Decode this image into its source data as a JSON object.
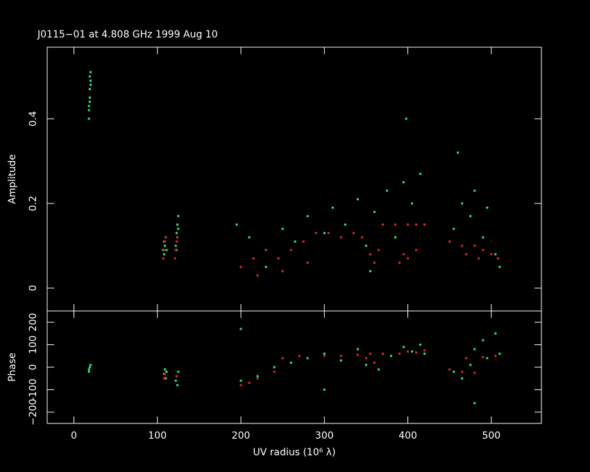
{
  "chart_data": [
    {
      "type": "scatter",
      "title": "J0115−01 at 4.808 GHz 1999 Aug 10",
      "ylabel": "Amplitude",
      "xlim": [
        -32,
        560
      ],
      "ylim": [
        -0.054,
        0.569
      ],
      "yticks": [
        0,
        0.2,
        0.4
      ],
      "series": [
        {
          "color": "#22ee77",
          "x": [
            18,
            18,
            19,
            19,
            20,
            20,
            19,
            18,
            20,
            19,
            107,
            108,
            109,
            110,
            111,
            108,
            122,
            123,
            124,
            125,
            123,
            124,
            125,
            195,
            210,
            230,
            250,
            265,
            280,
            300,
            310,
            325,
            340,
            350,
            360,
            375,
            385,
            395,
            405,
            415,
            420,
            455,
            465,
            475,
            480,
            490,
            495,
            505,
            510,
            398,
            460,
            355,
            230
          ],
          "values": [
            0.4,
            0.43,
            0.45,
            0.47,
            0.49,
            0.51,
            0.44,
            0.42,
            0.48,
            0.5,
            0.09,
            0.11,
            0.1,
            0.12,
            0.09,
            0.08,
            0.1,
            0.13,
            0.15,
            0.17,
            0.09,
            0.12,
            0.14,
            0.15,
            0.12,
            0.09,
            0.14,
            0.11,
            0.17,
            0.13,
            0.19,
            0.15,
            0.21,
            0.1,
            0.18,
            0.23,
            0.12,
            0.25,
            0.2,
            0.27,
            0.15,
            0.14,
            0.2,
            0.17,
            0.23,
            0.12,
            0.19,
            0.08,
            0.05,
            0.4,
            0.32,
            0.04,
            0.05
          ]
        },
        {
          "color": "#ee2222",
          "x": [
            107,
            108,
            109,
            110,
            121,
            122,
            123,
            124,
            200,
            215,
            230,
            245,
            260,
            275,
            290,
            305,
            320,
            335,
            345,
            355,
            360,
            365,
            370,
            385,
            400,
            395,
            390,
            410,
            420,
            410,
            400,
            450,
            465,
            480,
            490,
            500,
            508,
            470,
            485,
            220,
            250,
            280
          ],
          "values": [
            0.07,
            0.09,
            0.11,
            0.12,
            0.07,
            0.09,
            0.11,
            0.12,
            0.05,
            0.07,
            0.09,
            0.07,
            0.09,
            0.11,
            0.13,
            0.13,
            0.12,
            0.13,
            0.12,
            0.08,
            0.06,
            0.09,
            0.15,
            0.15,
            0.15,
            0.08,
            0.06,
            0.15,
            0.15,
            0.09,
            0.07,
            0.11,
            0.1,
            0.1,
            0.09,
            0.08,
            0.07,
            0.08,
            0.07,
            0.03,
            0.04,
            0.06
          ]
        }
      ]
    },
    {
      "type": "scatter",
      "ylabel": "Phase",
      "xlabel": "UV radius  (10⁶ λ)",
      "xlim": [
        -32,
        560
      ],
      "ylim": [
        -250,
        250
      ],
      "xticks": [
        0,
        100,
        200,
        300,
        400,
        500
      ],
      "yticks": [
        {
          "value": -200,
          "label": "−200"
        },
        {
          "value": -100,
          "label": "-100"
        },
        0,
        100,
        200
      ],
      "series": [
        {
          "color": "#22ee77",
          "x": [
            18,
            19,
            20,
            18,
            108,
            109,
            110,
            111,
            123,
            124,
            125,
            122,
            200,
            220,
            240,
            260,
            280,
            300,
            320,
            340,
            350,
            365,
            380,
            395,
            405,
            415,
            420,
            455,
            465,
            475,
            480,
            490,
            495,
            505,
            510,
            200,
            300,
            480
          ],
          "values": [
            -20,
            0,
            10,
            -10,
            -30,
            -10,
            -50,
            -20,
            -40,
            -80,
            -20,
            -60,
            -60,
            -40,
            0,
            20,
            40,
            60,
            30,
            80,
            10,
            -10,
            50,
            90,
            70,
            100,
            60,
            -20,
            -50,
            10,
            80,
            120,
            40,
            150,
            60,
            170,
            -100,
            -160
          ]
        },
        {
          "color": "#ee2222",
          "x": [
            108,
            109,
            123,
            200,
            210,
            220,
            240,
            250,
            270,
            300,
            320,
            340,
            355,
            360,
            350,
            370,
            390,
            400,
            410,
            420,
            450,
            465,
            480,
            470,
            490,
            505
          ],
          "values": [
            -50,
            -30,
            -40,
            -80,
            -70,
            -50,
            -20,
            40,
            50,
            50,
            50,
            55,
            60,
            20,
            40,
            60,
            60,
            70,
            65,
            75,
            -10,
            -20,
            -25,
            40,
            45,
            50
          ]
        }
      ]
    }
  ]
}
